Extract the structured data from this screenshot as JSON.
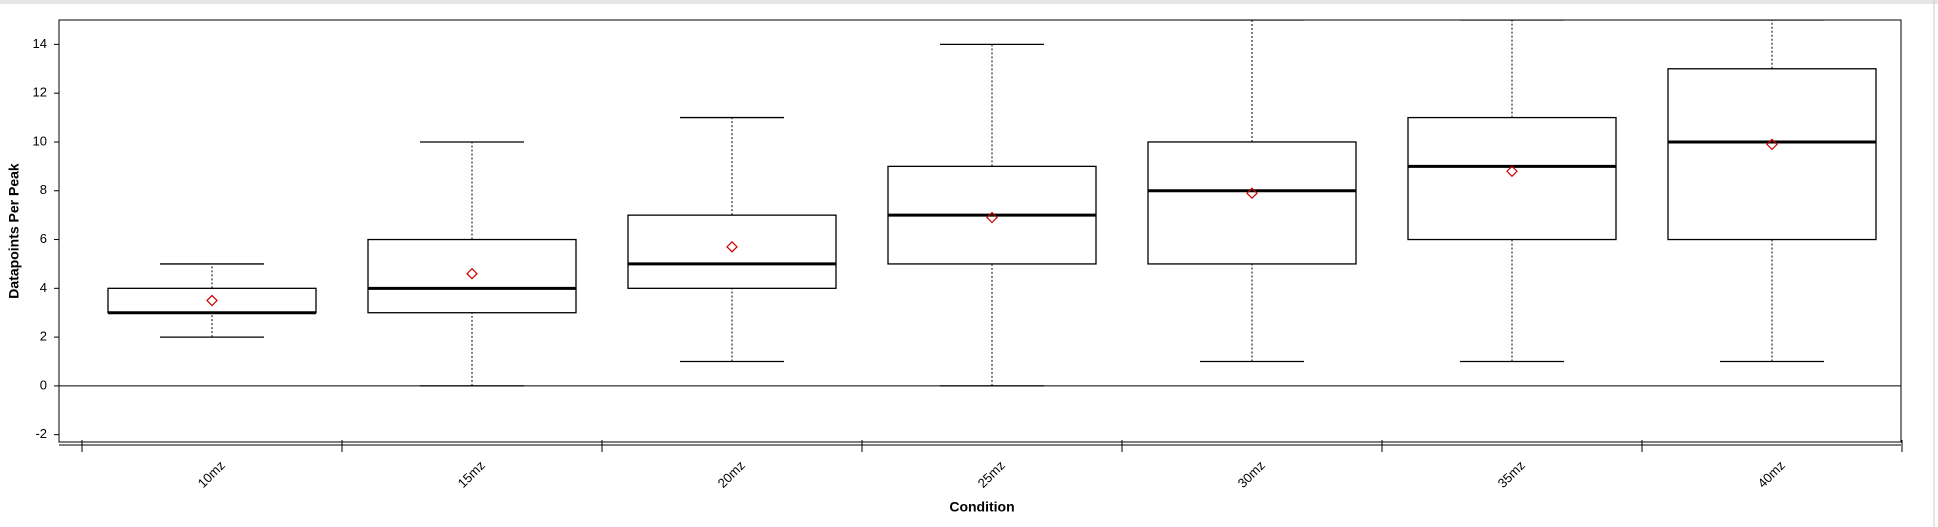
{
  "chart_data": {
    "type": "box",
    "x_label": "Condition",
    "y_label": "Datapoints Per Peak",
    "categories": [
      "10mz",
      "15mz",
      "20mz",
      "25mz",
      "30mz",
      "35mz",
      "40mz"
    ],
    "boxes": [
      {
        "whisker_low": 2,
        "q1": 3,
        "median": 3,
        "q3": 4,
        "whisker_high": 5,
        "mean": 3.5
      },
      {
        "whisker_low": 0,
        "q1": 3,
        "median": 4,
        "q3": 6,
        "whisker_high": 10,
        "mean": 4.6
      },
      {
        "whisker_low": 1,
        "q1": 4,
        "median": 5,
        "q3": 7,
        "whisker_high": 11,
        "mean": 5.7
      },
      {
        "whisker_low": 0,
        "q1": 5,
        "median": 7,
        "q3": 9,
        "whisker_high": 14,
        "mean": 6.9
      },
      {
        "whisker_low": 1,
        "q1": 5,
        "median": 8,
        "q3": 10,
        "whisker_high": 15,
        "mean": 7.9
      },
      {
        "whisker_low": 1,
        "q1": 6,
        "median": 9,
        "q3": 11,
        "whisker_high": 15,
        "mean": 8.8
      },
      {
        "whisker_low": 1,
        "q1": 6,
        "median": 10,
        "q3": 13,
        "whisker_high": 15,
        "mean": 9.9
      }
    ],
    "mean_color": "#cc0000",
    "ylim": [
      -2.3,
      15
    ],
    "yticks": [
      -2,
      0,
      2,
      4,
      6,
      8,
      10,
      12,
      14
    ],
    "zero_line": true
  }
}
